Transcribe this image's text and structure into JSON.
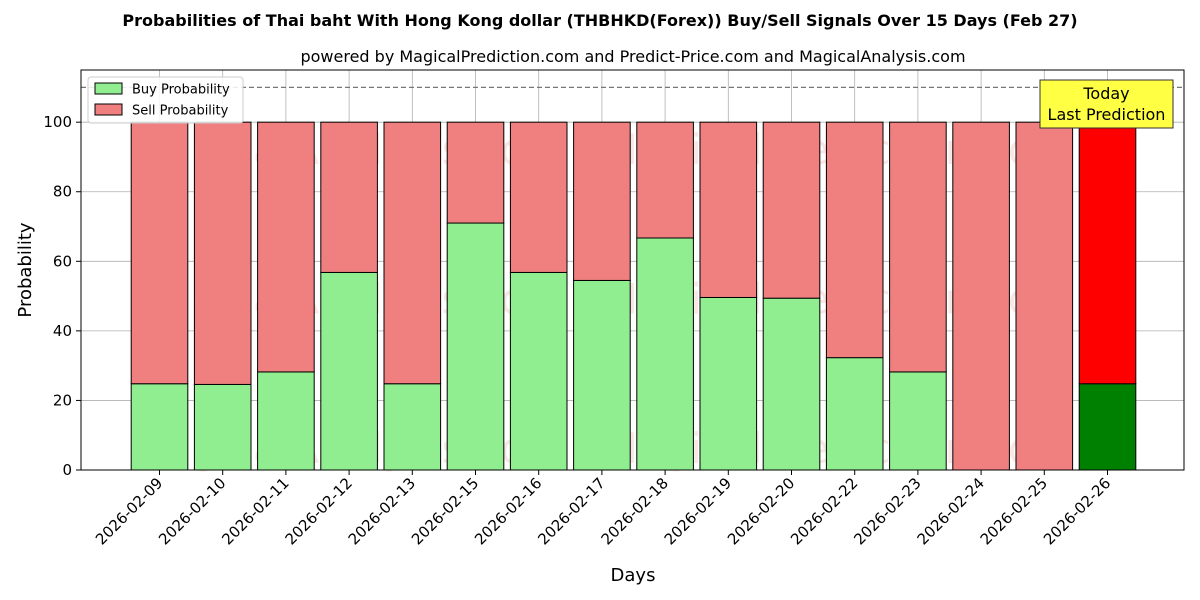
{
  "chart_data": {
    "type": "bar",
    "stacked": true,
    "title": "Probabilities of Thai baht With Hong Kong dollar (THBHKD(Forex)) Buy/Sell Signals Over 15 Days (Feb 27)",
    "subtitle": "powered by MagicalPrediction.com and Predict-Price.com and MagicalAnalysis.com",
    "xlabel": "Days",
    "ylabel": "Probability",
    "ylim": [
      0,
      115
    ],
    "yticks": [
      0,
      20,
      40,
      60,
      80,
      100
    ],
    "reference_line": 110,
    "grid": true,
    "legend_position": "top-left",
    "categories": [
      "2026-02-09",
      "2026-02-10",
      "2026-02-11",
      "2026-02-12",
      "2026-02-13",
      "2026-02-15",
      "2026-02-16",
      "2026-02-17",
      "2026-02-18",
      "2026-02-19",
      "2026-02-20",
      "2026-02-22",
      "2026-02-23",
      "2026-02-24",
      "2026-02-25",
      "2026-02-26"
    ],
    "series": [
      {
        "name": "Buy Probability",
        "color": "#90ee90",
        "highlight_color": "#008000",
        "values": [
          24.8,
          24.6,
          28.2,
          56.8,
          24.8,
          71.0,
          56.8,
          54.5,
          66.7,
          49.6,
          49.4,
          32.3,
          28.2,
          0,
          0,
          24.8
        ]
      },
      {
        "name": "Sell Probability",
        "color": "#f08080",
        "highlight_color": "#ff0000",
        "values": [
          75.2,
          75.4,
          71.8,
          43.2,
          75.2,
          29.0,
          43.2,
          45.5,
          33.3,
          50.4,
          50.6,
          67.7,
          71.8,
          100,
          100,
          75.2
        ]
      }
    ],
    "highlight_index": 15,
    "annotation": {
      "line1": "Today",
      "line2": "Last Prediction",
      "color": "#ffff44"
    },
    "watermarks": [
      "MagicalAnalysis.com",
      "MagicalPrediction.com"
    ]
  }
}
